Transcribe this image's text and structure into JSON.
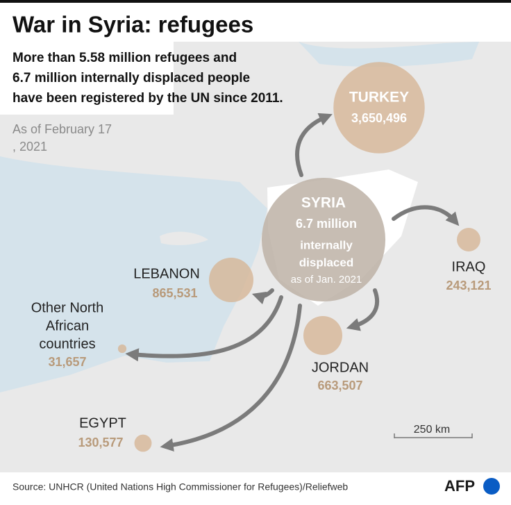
{
  "title": "War in Syria: refugees",
  "subtitle": [
    "More than 5.58 million refugees and",
    "6.7 million internally displaced people",
    "have been registered by the UN since 2011."
  ],
  "date": [
    "As of February 17",
    ", 2021"
  ],
  "syria": {
    "name": "SYRIA",
    "value": 6700000,
    "value_label": "6.7 million",
    "note": [
      "internally",
      "displaced"
    ],
    "as_of": "as of Jan. 2021"
  },
  "countries": [
    {
      "name": "TURKEY",
      "value": 3650496,
      "value_label": "3,650,496"
    },
    {
      "name": "LEBANON",
      "value": 865531,
      "value_label": "865,531"
    },
    {
      "name": "IRAQ",
      "value": 243121,
      "value_label": "243,121"
    },
    {
      "name": "JORDAN",
      "value": 663507,
      "value_label": "663,507"
    },
    {
      "name": [
        "Other North",
        "African",
        "countries"
      ],
      "value": 31657,
      "value_label": "31,657"
    },
    {
      "name": "EGYPT",
      "value": 130577,
      "value_label": "130,577"
    }
  ],
  "scale_label": "250 km",
  "source": "Source: UNHCR (United Nations High Commissioner for Refugees)/Reliefweb",
  "logo": "AFP"
}
